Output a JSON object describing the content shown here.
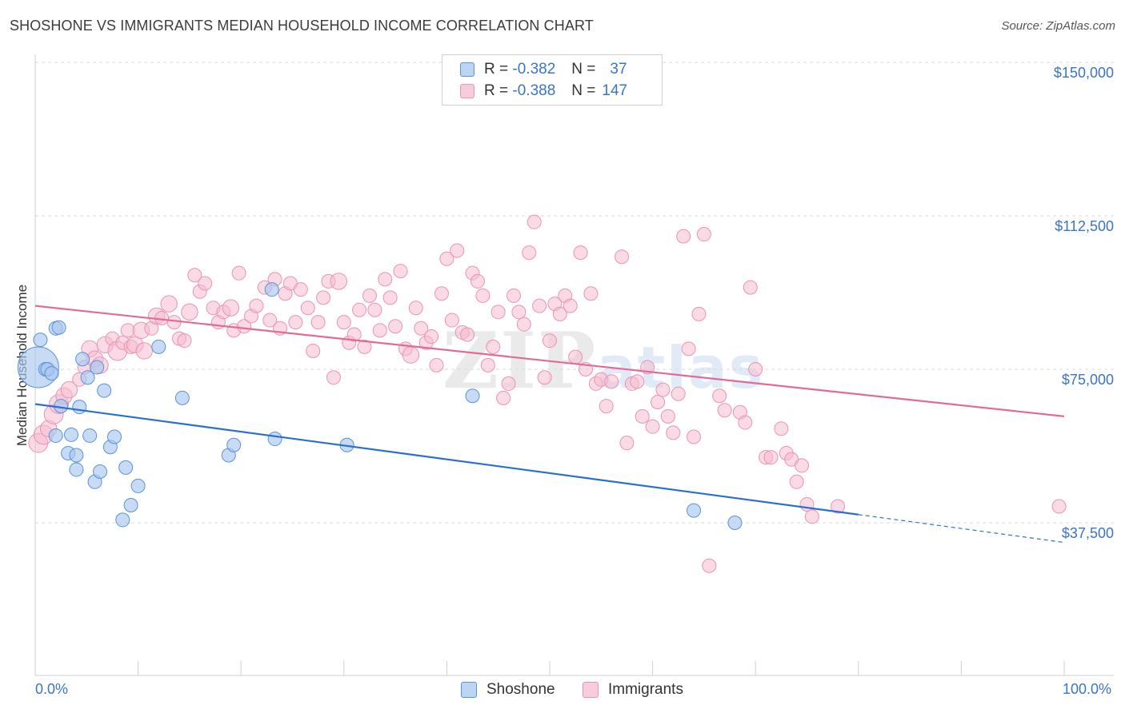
{
  "title": "SHOSHONE VS IMMIGRANTS MEDIAN HOUSEHOLD INCOME CORRELATION CHART",
  "source": "Source: ZipAtlas.com",
  "watermark_zip": "ZIP",
  "watermark_atlas": "atlas",
  "legend": {
    "shoshone": {
      "r_label": "R =",
      "r_value": "-0.382",
      "n_label": "N =",
      "n_value": "37"
    },
    "immigrants": {
      "r_label": "R =",
      "r_value": "-0.388",
      "n_label": "N =",
      "n_value": "147"
    }
  },
  "colors": {
    "shoshone_fill": "#a9c8ef",
    "shoshone_stroke": "#5b92d8",
    "shoshone_line": "#2a6fd0",
    "immigrants_fill": "#f6bcd0",
    "immigrants_stroke": "#e994b1",
    "immigrants_line": "#e26b95",
    "tick": "#3a74c8",
    "grid": "#d8d8d8"
  },
  "chart_data": {
    "type": "scatter",
    "title": "SHOSHONE VS IMMIGRANTS MEDIAN HOUSEHOLD INCOME CORRELATION CHART",
    "xlabel": "",
    "ylabel": "Median Household Income",
    "x_tick_labels": [
      "0.0%",
      "100.0%"
    ],
    "y_tick_values": [
      37500,
      75000,
      112500,
      150000
    ],
    "y_tick_labels": [
      "$37,500",
      "$75,000",
      "$112,500",
      "$150,000"
    ],
    "xlim": [
      0,
      100
    ],
    "ylim": [
      0,
      155000
    ],
    "grid": true,
    "legend_position": "top-center",
    "series": [
      {
        "name": "Shoshone",
        "points": [
          [
            0.3,
            75500,
            30
          ],
          [
            0.5,
            82200,
            10
          ],
          [
            1.0,
            75000,
            10
          ],
          [
            1.2,
            75000,
            10
          ],
          [
            1.6,
            74000,
            10
          ],
          [
            2.0,
            85000,
            10
          ],
          [
            2.3,
            85200,
            10
          ],
          [
            2.5,
            66000,
            10
          ],
          [
            2.0,
            58800,
            10
          ],
          [
            3.2,
            54500,
            10
          ],
          [
            3.5,
            59000,
            10
          ],
          [
            4.0,
            54000,
            10
          ],
          [
            4.0,
            50500,
            10
          ],
          [
            4.3,
            65800,
            10
          ],
          [
            4.6,
            77500,
            10
          ],
          [
            5.1,
            73000,
            10
          ],
          [
            5.3,
            58800,
            10
          ],
          [
            5.8,
            47500,
            10
          ],
          [
            6.0,
            75500,
            10
          ],
          [
            6.3,
            50000,
            10
          ],
          [
            6.7,
            69800,
            10
          ],
          [
            7.3,
            56000,
            10
          ],
          [
            7.7,
            58500,
            10
          ],
          [
            8.5,
            38200,
            10
          ],
          [
            8.8,
            51000,
            10
          ],
          [
            9.3,
            41800,
            10
          ],
          [
            10.0,
            46500,
            10
          ],
          [
            12.0,
            80500,
            10
          ],
          [
            14.3,
            68000,
            10
          ],
          [
            18.8,
            54000,
            10
          ],
          [
            19.3,
            56500,
            10
          ],
          [
            23.0,
            94500,
            10
          ],
          [
            23.3,
            58000,
            10
          ],
          [
            30.3,
            56500,
            10
          ],
          [
            42.5,
            68500,
            10
          ],
          [
            64.0,
            40500,
            10
          ],
          [
            68.0,
            37500,
            10
          ]
        ],
        "trend": {
          "x_start": 0,
          "y_start": 66500,
          "x_solid_end": 80,
          "y_solid_end": 39500,
          "x_end": 100,
          "y_end": 32700
        }
      },
      {
        "name": "Immigrants",
        "points": [
          [
            0.3,
            57000,
            14
          ],
          [
            0.8,
            59000,
            14
          ],
          [
            1.3,
            60500,
            12
          ],
          [
            1.8,
            64000,
            14
          ],
          [
            2.3,
            66500,
            14
          ],
          [
            2.8,
            68500,
            12
          ],
          [
            3.3,
            70000,
            12
          ],
          [
            4.3,
            72500,
            10
          ],
          [
            4.8,
            75500,
            10
          ],
          [
            5.3,
            80000,
            12
          ],
          [
            5.8,
            77500,
            12
          ],
          [
            6.3,
            76000,
            12
          ],
          [
            6.8,
            81000,
            12
          ],
          [
            7.5,
            82500,
            10
          ],
          [
            8.0,
            79500,
            14
          ],
          [
            8.5,
            81500,
            10
          ],
          [
            9.0,
            84500,
            10
          ],
          [
            9.3,
            80500,
            10
          ],
          [
            9.7,
            81000,
            12
          ],
          [
            10.3,
            84500,
            12
          ],
          [
            10.6,
            79500,
            12
          ],
          [
            11.3,
            85000,
            10
          ],
          [
            11.8,
            88000,
            12
          ],
          [
            12.3,
            87500,
            10
          ],
          [
            13.0,
            91000,
            12
          ],
          [
            13.5,
            86500,
            10
          ],
          [
            14.0,
            82500,
            10
          ],
          [
            14.5,
            82000,
            10
          ],
          [
            15.0,
            89000,
            12
          ],
          [
            15.5,
            98000,
            10
          ],
          [
            16.0,
            94000,
            10
          ],
          [
            16.5,
            96000,
            10
          ],
          [
            17.3,
            90000,
            10
          ],
          [
            17.8,
            86500,
            10
          ],
          [
            18.3,
            89000,
            10
          ],
          [
            19.0,
            90000,
            12
          ],
          [
            19.3,
            84500,
            10
          ],
          [
            19.8,
            98500,
            10
          ],
          [
            20.3,
            85500,
            10
          ],
          [
            21.0,
            88000,
            10
          ],
          [
            21.5,
            90500,
            10
          ],
          [
            22.3,
            95000,
            10
          ],
          [
            22.8,
            87000,
            10
          ],
          [
            23.3,
            97000,
            10
          ],
          [
            23.8,
            85000,
            10
          ],
          [
            24.3,
            93500,
            10
          ],
          [
            24.8,
            96000,
            10
          ],
          [
            25.3,
            86500,
            10
          ],
          [
            25.8,
            94500,
            10
          ],
          [
            26.5,
            90000,
            10
          ],
          [
            27.0,
            79500,
            10
          ],
          [
            27.5,
            86500,
            10
          ],
          [
            28.0,
            92500,
            10
          ],
          [
            28.5,
            96500,
            10
          ],
          [
            29.0,
            73000,
            10
          ],
          [
            29.5,
            96500,
            12
          ],
          [
            30.0,
            86500,
            10
          ],
          [
            30.5,
            81500,
            10
          ],
          [
            31.0,
            83500,
            10
          ],
          [
            31.5,
            89500,
            10
          ],
          [
            32.0,
            80500,
            10
          ],
          [
            32.5,
            93000,
            10
          ],
          [
            33.0,
            89500,
            10
          ],
          [
            33.5,
            84500,
            10
          ],
          [
            34.0,
            97000,
            10
          ],
          [
            34.5,
            92500,
            10
          ],
          [
            35.0,
            85500,
            10
          ],
          [
            35.5,
            99000,
            10
          ],
          [
            36.0,
            80000,
            10
          ],
          [
            36.5,
            78500,
            12
          ],
          [
            37.0,
            90000,
            10
          ],
          [
            37.5,
            85000,
            10
          ],
          [
            38.0,
            81500,
            10
          ],
          [
            38.5,
            83000,
            10
          ],
          [
            39.0,
            76000,
            10
          ],
          [
            39.5,
            93500,
            10
          ],
          [
            40.0,
            102000,
            10
          ],
          [
            40.5,
            87000,
            10
          ],
          [
            41.0,
            104000,
            10
          ],
          [
            41.5,
            84000,
            10
          ],
          [
            42.0,
            83500,
            10
          ],
          [
            42.5,
            98500,
            10
          ],
          [
            43.0,
            96500,
            10
          ],
          [
            43.5,
            93000,
            10
          ],
          [
            44.0,
            76000,
            10
          ],
          [
            44.5,
            80500,
            10
          ],
          [
            45.0,
            89000,
            10
          ],
          [
            45.5,
            68000,
            10
          ],
          [
            46.0,
            71500,
            10
          ],
          [
            46.5,
            93000,
            10
          ],
          [
            47.0,
            89000,
            10
          ],
          [
            47.5,
            86000,
            10
          ],
          [
            48.0,
            103500,
            10
          ],
          [
            48.5,
            111000,
            10
          ],
          [
            49.0,
            90500,
            10
          ],
          [
            49.5,
            73000,
            10
          ],
          [
            50.0,
            82000,
            10
          ],
          [
            50.5,
            91000,
            10
          ],
          [
            51.0,
            88500,
            10
          ],
          [
            51.5,
            93000,
            10
          ],
          [
            52.0,
            90500,
            10
          ],
          [
            52.5,
            78000,
            10
          ],
          [
            53.0,
            103500,
            10
          ],
          [
            53.5,
            75000,
            10
          ],
          [
            54.0,
            93500,
            10
          ],
          [
            54.5,
            71500,
            10
          ],
          [
            55.0,
            72500,
            10
          ],
          [
            55.5,
            66000,
            10
          ],
          [
            56.0,
            72000,
            10
          ],
          [
            57.0,
            102500,
            10
          ],
          [
            57.5,
            57000,
            10
          ],
          [
            58.0,
            71500,
            10
          ],
          [
            58.5,
            72000,
            10
          ],
          [
            59.0,
            63500,
            10
          ],
          [
            59.5,
            75500,
            10
          ],
          [
            60.0,
            61000,
            10
          ],
          [
            60.5,
            67000,
            10
          ],
          [
            61.0,
            70000,
            10
          ],
          [
            61.5,
            63500,
            10
          ],
          [
            62.0,
            59500,
            10
          ],
          [
            62.5,
            69000,
            10
          ],
          [
            63.0,
            107500,
            10
          ],
          [
            63.5,
            80000,
            10
          ],
          [
            64.0,
            58500,
            10
          ],
          [
            64.5,
            88500,
            10
          ],
          [
            65.0,
            108000,
            10
          ],
          [
            65.5,
            27000,
            10
          ],
          [
            66.5,
            68500,
            10
          ],
          [
            67.0,
            65000,
            10
          ],
          [
            68.5,
            64500,
            10
          ],
          [
            69.0,
            62000,
            10
          ],
          [
            69.5,
            95000,
            10
          ],
          [
            70.0,
            75000,
            10
          ],
          [
            71.0,
            53500,
            10
          ],
          [
            71.5,
            53500,
            10
          ],
          [
            72.5,
            60500,
            10
          ],
          [
            73.0,
            54500,
            10
          ],
          [
            73.5,
            53000,
            10
          ],
          [
            74.0,
            47500,
            10
          ],
          [
            74.5,
            51500,
            10
          ],
          [
            75.0,
            42000,
            10
          ],
          [
            75.5,
            39000,
            10
          ],
          [
            78.0,
            41500,
            10
          ],
          [
            99.5,
            41500,
            10
          ]
        ],
        "trend": {
          "x_start": 0,
          "y_start": 90500,
          "x_end": 100,
          "y_end": 63500
        }
      }
    ]
  }
}
